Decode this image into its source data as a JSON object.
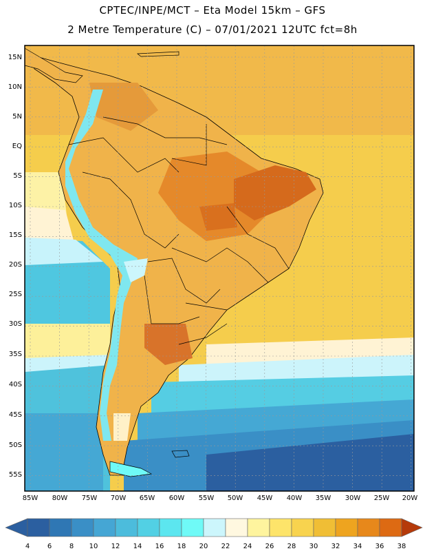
{
  "header": {
    "line1": "CPTEC/INPE/MCT –  Eta Model 15km – GFS",
    "line2": "2 Metre Temperature (C) – 07/01/2021 12UTC fct=8h"
  },
  "axes": {
    "lat_labels": [
      "15N",
      "10N",
      "5N",
      "EQ",
      "5S",
      "10S",
      "15S",
      "20S",
      "25S",
      "30S",
      "35S",
      "40S",
      "45S",
      "50S",
      "55S"
    ],
    "lon_labels": [
      "85W",
      "80W",
      "75W",
      "70W",
      "65W",
      "60W",
      "55W",
      "50W",
      "45W",
      "40W",
      "35W",
      "30W",
      "25W",
      "20W"
    ]
  },
  "colorbar": {
    "ticks": [
      "4",
      "6",
      "8",
      "10",
      "12",
      "14",
      "16",
      "18",
      "20",
      "22",
      "24",
      "26",
      "28",
      "30",
      "32",
      "34",
      "36",
      "38"
    ],
    "colors": [
      "#2b5fa0",
      "#2f77b4",
      "#3a8fc6",
      "#45a6d4",
      "#4cbcdc",
      "#52d0e4",
      "#5ce6ef",
      "#6ffaf7",
      "#ccf6fc",
      "#fff8e0",
      "#fef49e",
      "#fde46a",
      "#f8d34e",
      "#f0be35",
      "#eea41f",
      "#e7881b",
      "#dd6a13",
      "#c9480c",
      "#b53a0a"
    ]
  },
  "fields": {
    "land_color": "#f0b34a",
    "hot_color": "#d56a1c",
    "andes_color": "#7fe7ef",
    "ocean_warm": "#f5c841"
  }
}
